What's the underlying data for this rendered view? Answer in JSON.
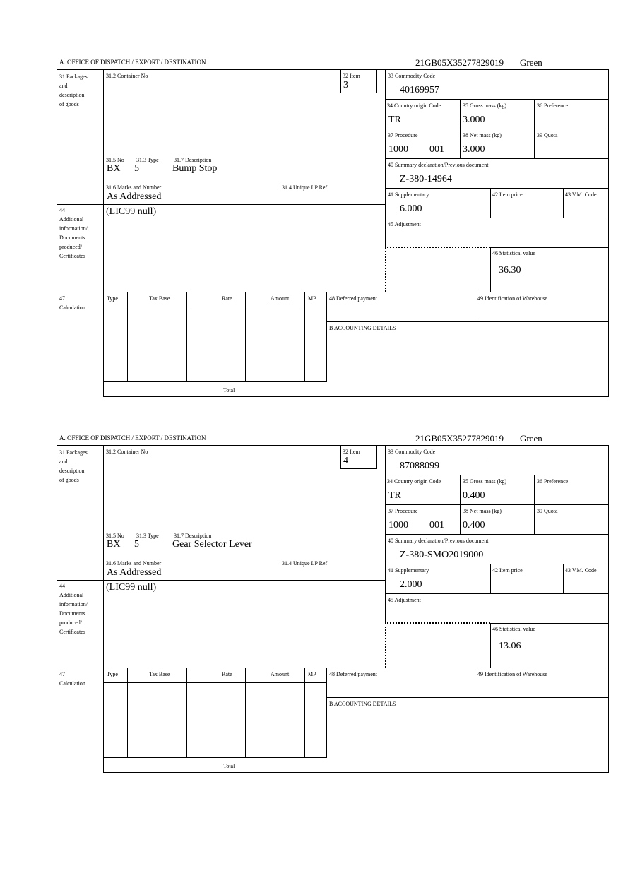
{
  "labels": {
    "office": "A. OFFICE OF DISPATCH / EXPORT / DESTINATION",
    "packages": [
      "31 Packages",
      "and",
      "description",
      "of goods"
    ],
    "container": "31.2 Container No",
    "item": "32 Item",
    "no": "31.5 No",
    "type": "31.3 Type",
    "description": "31.7 Description",
    "marks": "31.6 Marks and Number",
    "unique_ref": "31.4 Unique LP Ref",
    "commodity": "33 Commodity Code",
    "country": "34 Country origin Code",
    "gross": "35 Gross mass (kg)",
    "preference": "36 Preference",
    "procedure": "37 Procedure",
    "net": "38 Net mass (kg)",
    "quota": "39 Quota",
    "summary": "40 Summary declaration/Previous document",
    "supplementary": "41 Supplementary",
    "item_price": "42 Item price",
    "vm_code": "43 V.M. Code",
    "additional": [
      "44",
      "Additional",
      "information/",
      "Documents",
      "produced/",
      "Certificates"
    ],
    "adjustment": "45 Adjustment",
    "statistical": "46 Statistical value",
    "calc": [
      "47",
      "Calculation"
    ],
    "calc_cols": [
      "Type",
      "Tax Base",
      "Rate",
      "Amount",
      "MP"
    ],
    "total": "Total",
    "deferred": "48 Deferred payment",
    "warehouse": "49 Identification of Warehouse",
    "accounting": "B ACCOUNTING DETAILS"
  },
  "items": [
    {
      "reference": "21GB05X35277829019",
      "route": "Green",
      "item_no": "3",
      "pkg_no": "BX",
      "pkg_type": "5",
      "description": "Bump Stop",
      "marks": "As Addressed",
      "commodity_code": "40169957",
      "country": "TR",
      "gross_mass": "3.000",
      "procedure": "1000",
      "procedure_add": "001",
      "net_mass": "3.000",
      "previous_doc": "Z-380-14964",
      "supplementary": "6.000",
      "additional_info": "(LIC99 null)",
      "statistical_value": "36.30"
    },
    {
      "reference": "21GB05X35277829019",
      "route": "Green",
      "item_no": "4",
      "pkg_no": "BX",
      "pkg_type": "5",
      "description": "Gear Selector Lever",
      "marks": "As Addressed",
      "commodity_code": "87088099",
      "country": "TR",
      "gross_mass": "0.400",
      "procedure": "1000",
      "procedure_add": "001",
      "net_mass": "0.400",
      "previous_doc": "Z-380-SMO2019000",
      "supplementary": "2.000",
      "additional_info": "(LIC99 null)",
      "statistical_value": "13.06"
    }
  ]
}
